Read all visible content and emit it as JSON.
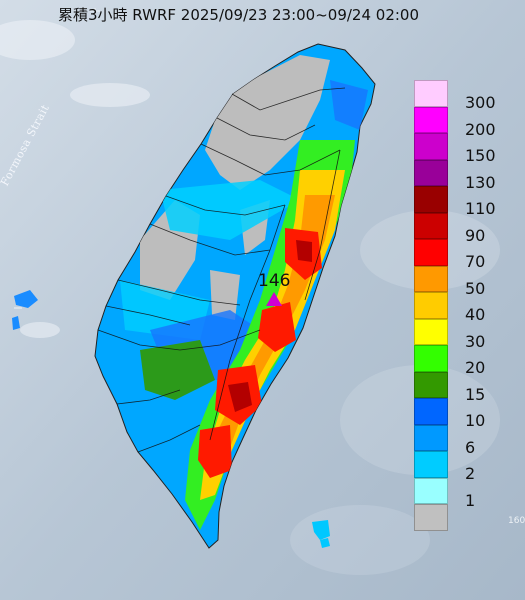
{
  "title": "累積3小時 RWRF 2025/09/23 23:00~09/24 02:00",
  "sea_label": "Formosa Strait",
  "edge_label": "160",
  "peak": {
    "value": "146",
    "marker_color": "#d000d0"
  },
  "legend": [
    {
      "label": "300",
      "color": "#ffccff"
    },
    {
      "label": "200",
      "color": "#ff00ff"
    },
    {
      "label": "150",
      "color": "#cc00cc"
    },
    {
      "label": "130",
      "color": "#990099"
    },
    {
      "label": "110",
      "color": "#990000"
    },
    {
      "label": "90",
      "color": "#cc0000"
    },
    {
      "label": "70",
      "color": "#ff0000"
    },
    {
      "label": "50",
      "color": "#ff9900"
    },
    {
      "label": "40",
      "color": "#ffcc00"
    },
    {
      "label": "30",
      "color": "#ffff00"
    },
    {
      "label": "20",
      "color": "#33ff00"
    },
    {
      "label": "15",
      "color": "#339900"
    },
    {
      "label": "10",
      "color": "#0066ff"
    },
    {
      "label": "6",
      "color": "#0099ff"
    },
    {
      "label": "2",
      "color": "#00ccff"
    },
    {
      "label": "1",
      "color": "#99ffff"
    },
    {
      "label": "",
      "color": "#c0c0c0"
    }
  ]
}
